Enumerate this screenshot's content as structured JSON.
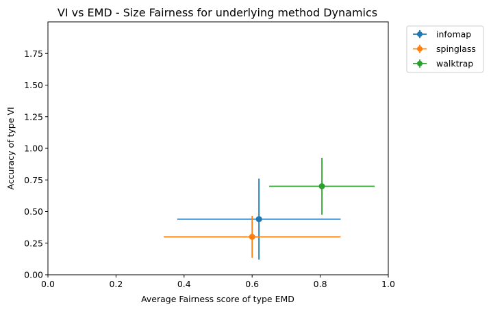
{
  "chart_data": {
    "type": "scatter",
    "title": "VI vs EMD - Size Fairness for underlying method Dynamics",
    "xlabel": "Average Fairness score of type EMD",
    "ylabel": "Accuracy of type VI",
    "xlim": [
      0.0,
      1.0
    ],
    "ylim": [
      0.0,
      2.0
    ],
    "xticks": [
      "0.0",
      "0.2",
      "0.4",
      "0.6",
      "0.8",
      "1.0"
    ],
    "yticks": [
      "0.00",
      "0.25",
      "0.50",
      "0.75",
      "1.00",
      "1.25",
      "1.50",
      "1.75"
    ],
    "grid": false,
    "legend_position": "outside top-right",
    "series": [
      {
        "name": "infomap",
        "color": "#1f77b4",
        "x": 0.62,
        "y": 0.44,
        "xerr": [
          0.24,
          0.24
        ],
        "yerr": [
          0.32,
          0.32
        ]
      },
      {
        "name": "spinglass",
        "color": "#ff7f0e",
        "x": 0.6,
        "y": 0.3,
        "xerr": [
          0.26,
          0.26
        ],
        "yerr": [
          0.165,
          0.165
        ]
      },
      {
        "name": "walktrap",
        "color": "#2ca02c",
        "x": 0.805,
        "y": 0.7,
        "xerr": [
          0.155,
          0.155
        ],
        "yerr": [
          0.225,
          0.225
        ]
      }
    ]
  }
}
